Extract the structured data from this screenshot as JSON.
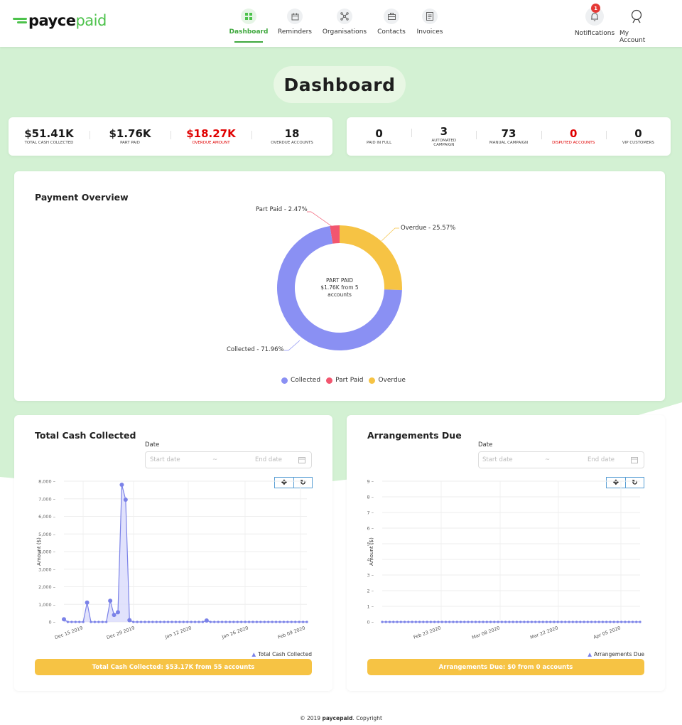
{
  "brand": {
    "logo_part1": "payce",
    "logo_part2": "paid",
    "accent": "#4cc24b"
  },
  "nav": {
    "items": [
      {
        "label": "Dashboard",
        "icon": "dashboard-icon"
      },
      {
        "label": "Reminders",
        "icon": "calendar-icon"
      },
      {
        "label": "Organisations",
        "icon": "network-icon"
      },
      {
        "label": "Contacts",
        "icon": "briefcase-icon"
      },
      {
        "label": "Invoices",
        "icon": "document-icon"
      }
    ],
    "notifications_label": "Notifications",
    "notifications_count": "1",
    "account_label": "My Account"
  },
  "page_title": "Dashboard",
  "stats_left": [
    {
      "value": "$51.41K",
      "label": "TOTAL CASH COLLECTED"
    },
    {
      "value": "$1.76K",
      "label": "PART PAID"
    },
    {
      "value": "$18.27K",
      "label": "OVERDUE AMOUNT"
    },
    {
      "value": "18",
      "label": "OVERDUE ACCOUNTS"
    }
  ],
  "stats_right": [
    {
      "value": "0",
      "label": "PAID IN FULL"
    },
    {
      "value": "3",
      "label": "AUTOMATED CAMPAIGN"
    },
    {
      "value": "73",
      "label": "MANUAL CAMPAIGN"
    },
    {
      "value": "0",
      "label": "DISPUTED ACCOUNTS"
    },
    {
      "value": "0",
      "label": "VIP CUSTOMERS"
    }
  ],
  "payment_overview": {
    "title": "Payment Overview",
    "center_title": "PART PAID",
    "center_line1": "$1.76K from 5",
    "center_line2": "accounts",
    "label_part_paid": "Part Paid - 2.47%",
    "label_overdue": "Overdue - 25.57%",
    "label_collected": "Collected - 71.96%",
    "legend": [
      "Collected",
      "Part Paid",
      "Overdue"
    ],
    "colors": {
      "collected": "#8a90f3",
      "part_paid": "#f2566f",
      "overdue": "#f6c344"
    }
  },
  "total_cash": {
    "title": "Total Cash Collected",
    "date_label": "Date",
    "start_placeholder": "Start date",
    "separator": "~",
    "end_placeholder": "End date",
    "move_btn": "✥",
    "reset_btn": "↻",
    "y_axis_label": "Amount ($)",
    "y_ticks": [
      "0",
      "1,000",
      "2,000",
      "3,000",
      "4,000",
      "5,000",
      "6,000",
      "7,000",
      "8,000"
    ],
    "x_ticks": [
      "Dec 15 2019",
      "Dec 29 2019",
      "Jan 12 2020",
      "Jan 26 2020",
      "Feb 09 2020"
    ],
    "series_name": "Total Cash Collected",
    "summary": "Total Cash Collected: $53.17K from 55 accounts"
  },
  "arrangements": {
    "title": "Arrangements Due",
    "date_label": "Date",
    "start_placeholder": "Start date",
    "separator": "~",
    "end_placeholder": "End date",
    "move_btn": "✥",
    "reset_btn": "↻",
    "y_axis_label": "Amount ($)",
    "y_ticks": [
      "0",
      "1",
      "2",
      "3",
      "4",
      "5",
      "6",
      "7",
      "8",
      "9"
    ],
    "x_ticks": [
      "Feb 23 2020",
      "Mar 08 2020",
      "Mar 22 2020",
      "Apr 05 2020"
    ],
    "series_name": "Arrangements Due",
    "summary": "Arrangements Due: $0 from 0 accounts"
  },
  "chart_data": [
    {
      "type": "pie",
      "title": "Payment Overview",
      "categories": [
        "Collected",
        "Part Paid",
        "Overdue"
      ],
      "values": [
        71.96,
        2.47,
        25.57
      ]
    },
    {
      "type": "line",
      "title": "Total Cash Collected",
      "ylabel": "Amount ($)",
      "ylim": [
        0,
        8000
      ],
      "series": [
        {
          "name": "Total Cash Collected",
          "values": [
            150,
            0,
            0,
            0,
            0,
            0,
            1100,
            0,
            0,
            0,
            0,
            0,
            1200,
            400,
            550,
            7800,
            6950,
            100,
            0,
            0,
            0,
            0,
            0,
            0,
            0,
            0,
            0,
            0,
            0,
            0,
            0,
            0,
            0,
            0,
            0,
            0,
            0,
            80,
            0,
            0,
            0,
            0,
            0,
            0,
            0,
            0,
            0,
            0,
            0,
            0,
            0,
            0,
            0,
            0,
            0,
            0,
            0,
            0,
            0,
            0,
            0,
            0,
            0,
            0
          ]
        }
      ]
    },
    {
      "type": "line",
      "title": "Arrangements Due",
      "ylabel": "Amount ($)",
      "ylim": [
        0,
        9
      ],
      "series": [
        {
          "name": "Arrangements Due",
          "values": [
            0,
            0,
            0,
            0,
            0,
            0,
            0,
            0,
            0,
            0,
            0,
            0,
            0,
            0,
            0,
            0,
            0,
            0,
            0,
            0,
            0,
            0,
            0,
            0,
            0,
            0,
            0,
            0,
            0,
            0,
            0,
            0,
            0,
            0,
            0,
            0,
            0,
            0,
            0,
            0,
            0,
            0,
            0,
            0,
            0,
            0,
            0,
            0,
            0,
            0,
            0,
            0,
            0,
            0,
            0,
            0,
            0,
            0,
            0,
            0,
            0,
            0,
            0,
            0,
            0,
            0,
            0,
            0,
            0,
            0
          ]
        }
      ]
    }
  ],
  "footer": {
    "prefix": "© 2019 ",
    "brand": "paycepaid",
    "suffix": ". Copyright"
  }
}
